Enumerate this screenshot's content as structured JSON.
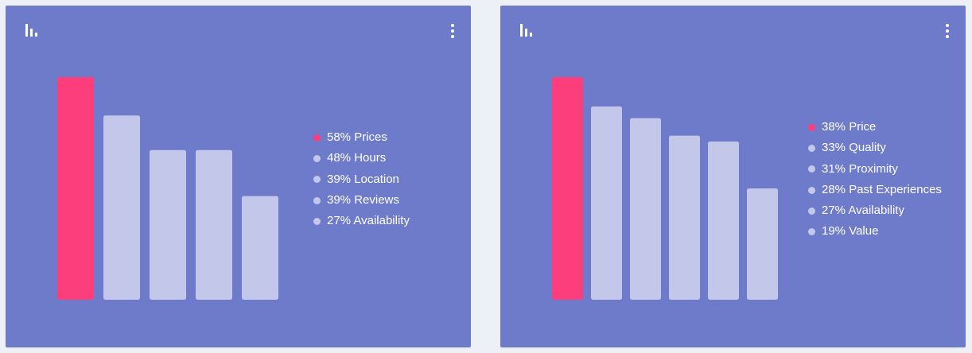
{
  "colors": {
    "card_bg": "#6e7bcb",
    "highlight": "#fc3e7c",
    "bar": "#c3c8ea",
    "text": "#ffffff"
  },
  "cards": [
    {
      "header": {
        "left_icon": "bar-chart-icon",
        "right_icon": "more-vertical-icon"
      },
      "legend": [
        {
          "text": "58% Prices"
        },
        {
          "text": "48% Hours"
        },
        {
          "text": "39% Location"
        },
        {
          "text": "39% Reviews"
        },
        {
          "text": "27% Availability"
        }
      ]
    },
    {
      "header": {
        "left_icon": "bar-chart-icon",
        "right_icon": "more-vertical-icon"
      },
      "legend": [
        {
          "text": "38% Price"
        },
        {
          "text": "33% Quality"
        },
        {
          "text": "31% Proximity"
        },
        {
          "text": "28% Past Experiences"
        },
        {
          "text": "27% Availability"
        },
        {
          "text": "19% Value"
        }
      ]
    }
  ],
  "chart_data": [
    {
      "type": "bar",
      "categories": [
        "Prices",
        "Hours",
        "Location",
        "Reviews",
        "Availability"
      ],
      "values": [
        58,
        48,
        39,
        39,
        27
      ],
      "unit": "%",
      "highlight_index": 0,
      "ylim": [
        0,
        58
      ],
      "grid": false,
      "axes_visible": false,
      "legend_position": "right"
    },
    {
      "type": "bar",
      "categories": [
        "Price",
        "Quality",
        "Proximity",
        "Past Experiences",
        "Availability",
        "Value"
      ],
      "values": [
        38,
        33,
        31,
        28,
        27,
        19
      ],
      "unit": "%",
      "highlight_index": 0,
      "ylim": [
        0,
        38
      ],
      "grid": false,
      "axes_visible": false,
      "legend_position": "right"
    }
  ]
}
